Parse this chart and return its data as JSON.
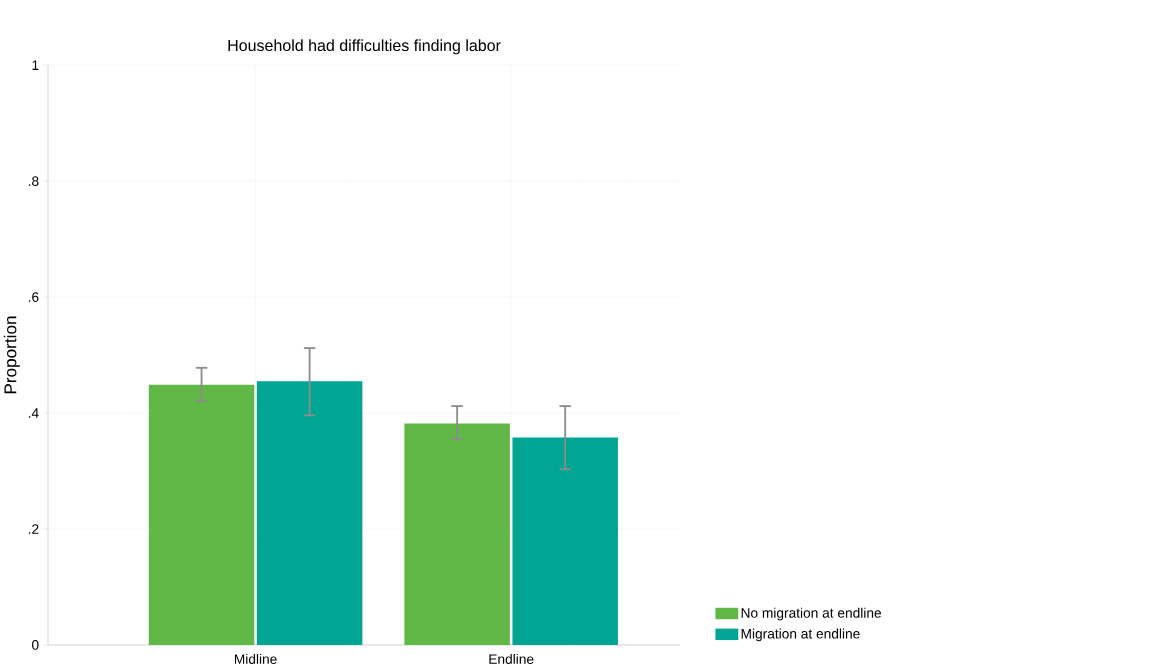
{
  "chart_data": {
    "type": "bar",
    "title": "Household had difficulties finding labor",
    "ylabel": "Proportion",
    "categories": [
      "Midline",
      "Endline"
    ],
    "series": [
      {
        "name": "No migration at endline",
        "color": "#62b846",
        "values": [
          0.449,
          0.382
        ],
        "errors": [
          [
            0.421,
            0.478
          ],
          [
            0.355,
            0.412
          ]
        ]
      },
      {
        "name": "Migration at endline",
        "color": "#00a693",
        "values": [
          0.455,
          0.358
        ],
        "errors": [
          [
            0.396,
            0.512
          ],
          [
            0.303,
            0.412
          ]
        ]
      }
    ],
    "ylim": [
      0,
      1
    ],
    "yticks": [
      0,
      {
        "value": 0.2,
        "label": ".2"
      },
      {
        "value": 0.4,
        "label": ".4"
      },
      {
        "value": 0.6,
        "label": ".6"
      },
      {
        "value": 0.8,
        "label": ".8"
      },
      1
    ],
    "grid": true,
    "legend": "bottom right"
  }
}
